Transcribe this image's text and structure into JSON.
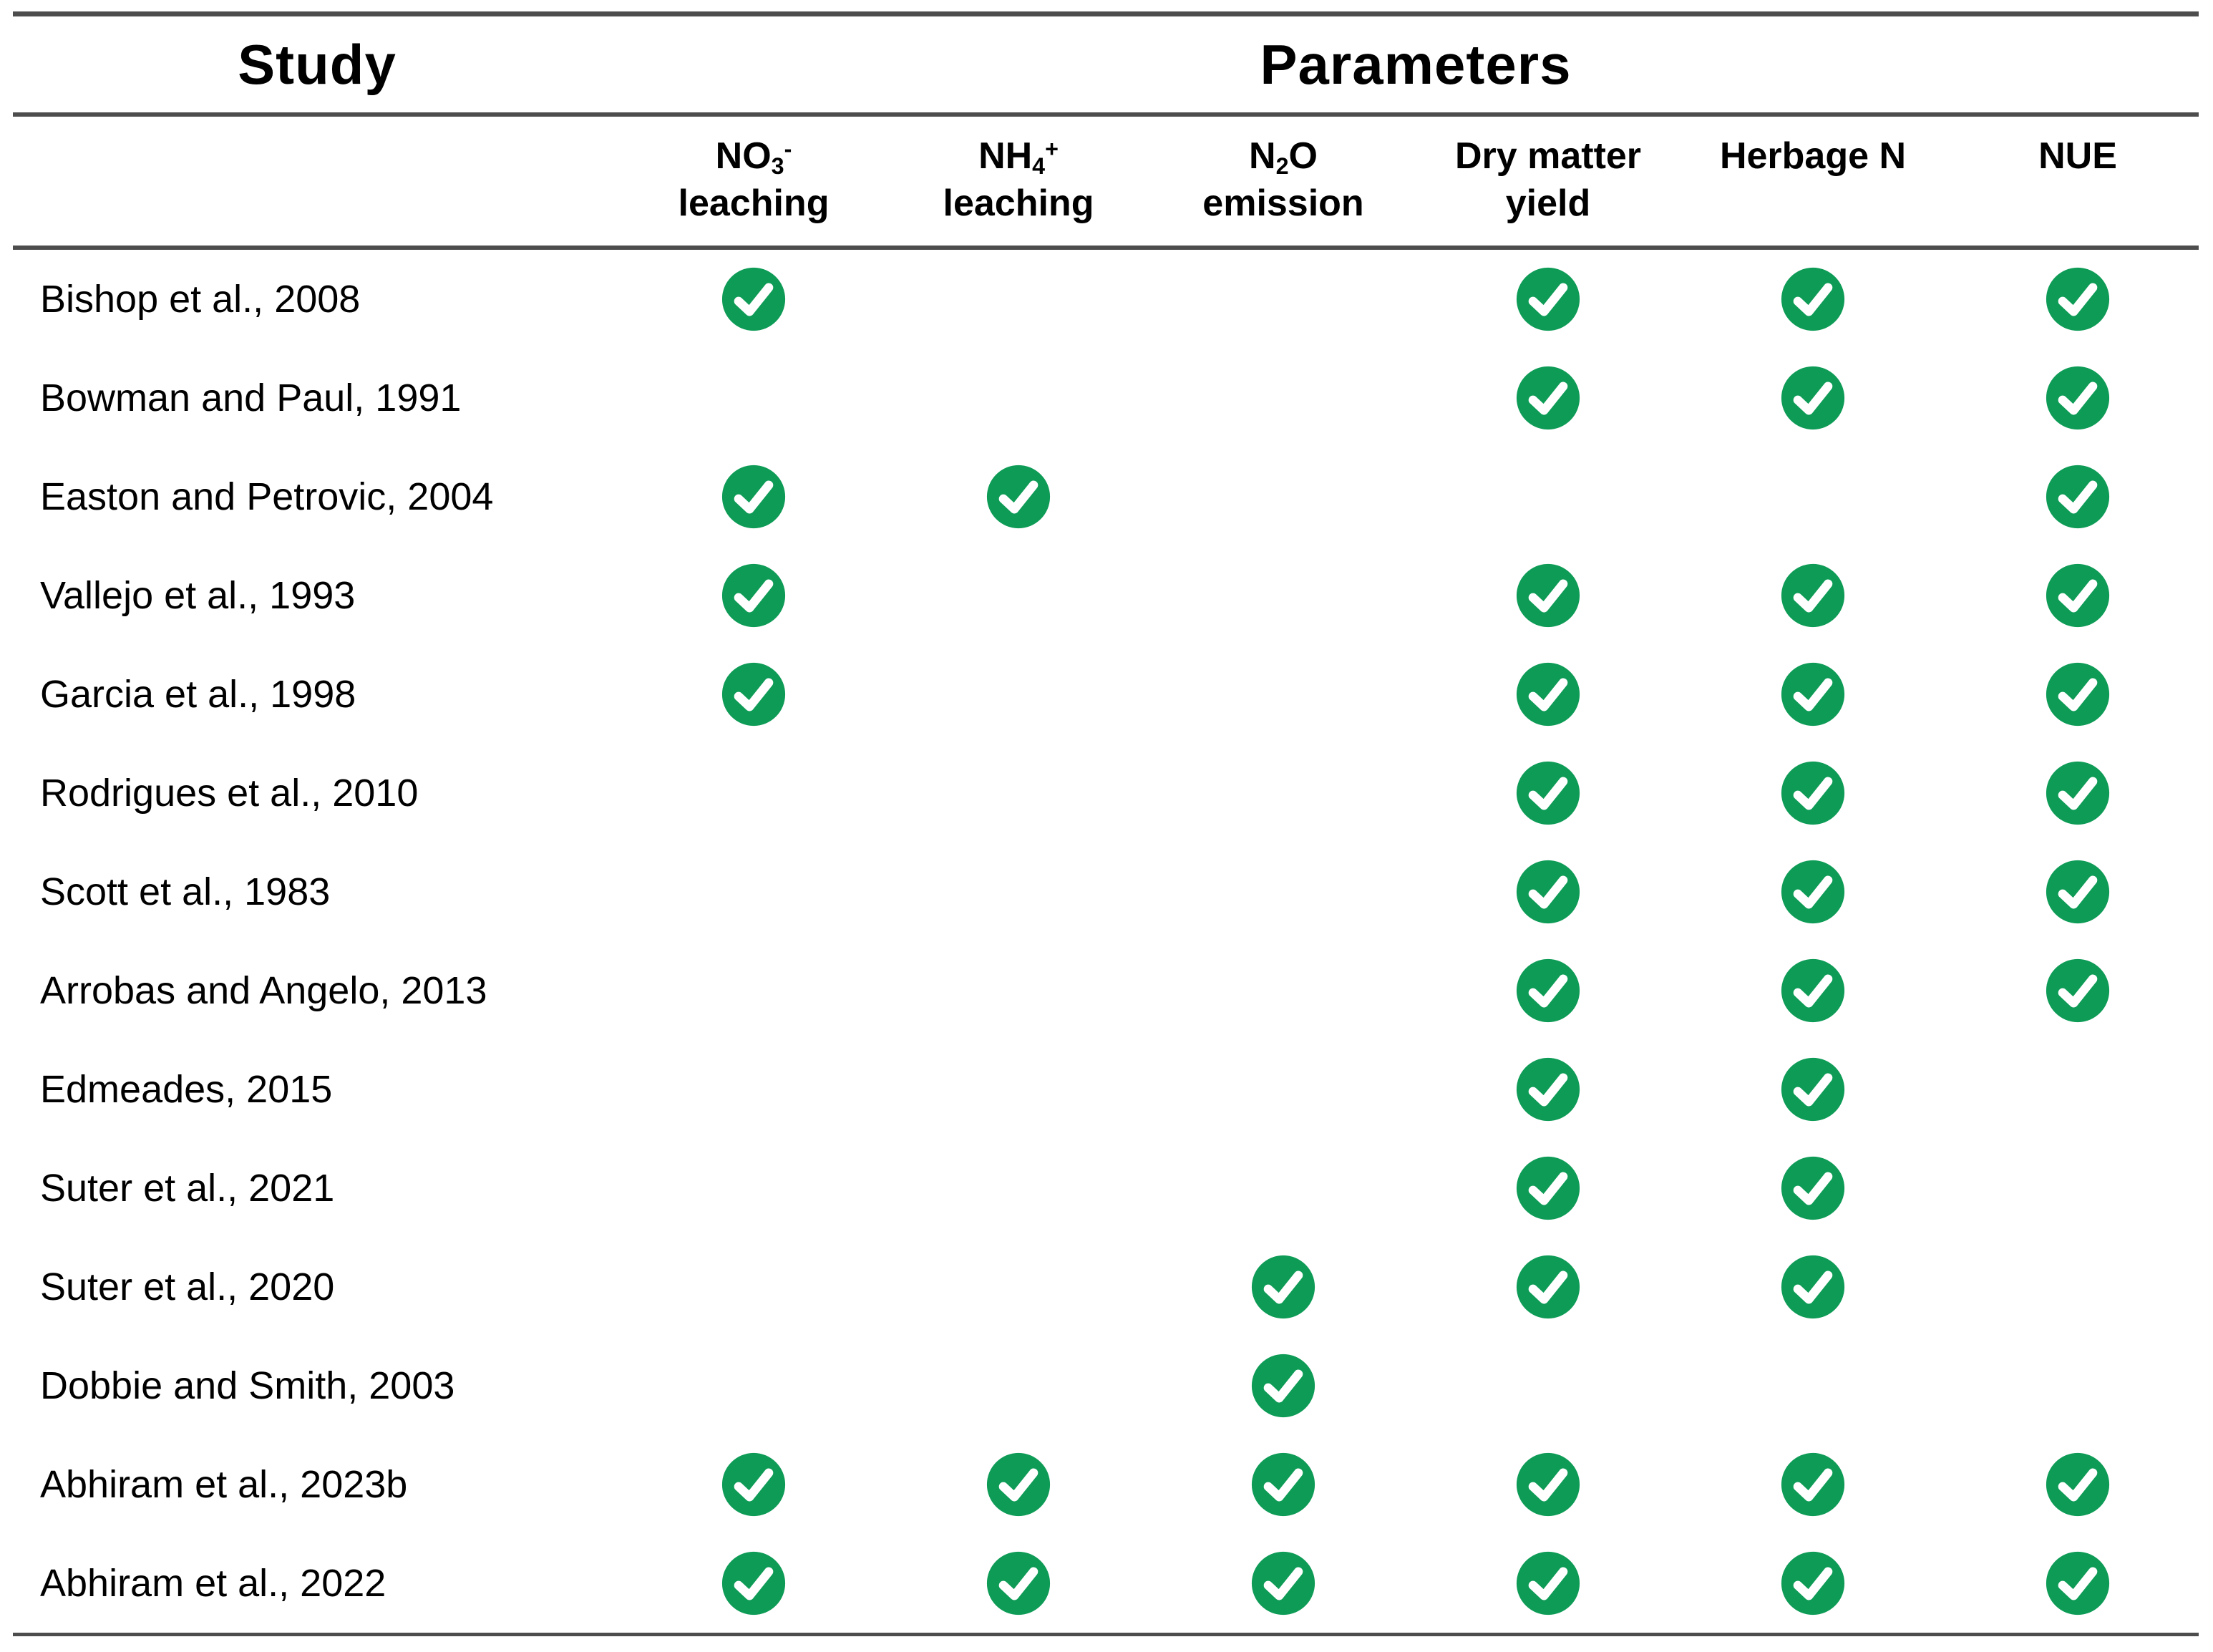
{
  "table": {
    "title_study": "Study",
    "title_parameters": "Parameters",
    "columns": [
      {
        "formula_pre": "NO",
        "formula_sub": "3",
        "formula_sup": "-",
        "formula_post": "",
        "line2": "leaching"
      },
      {
        "formula_pre": "NH",
        "formula_sub": "4",
        "formula_sup": "+",
        "formula_post": "",
        "line2": "leaching"
      },
      {
        "formula_pre": "N",
        "formula_sub": "2",
        "formula_sup": "",
        "formula_post": "O",
        "line2": "emission"
      },
      {
        "formula_pre": "Dry matter",
        "formula_sub": "",
        "formula_sup": "",
        "formula_post": "",
        "line2": "yield"
      },
      {
        "formula_pre": "Herbage N",
        "formula_sub": "",
        "formula_sup": "",
        "formula_post": "",
        "line2": ""
      },
      {
        "formula_pre": "NUE",
        "formula_sub": "",
        "formula_sup": "",
        "formula_post": "",
        "line2": ""
      }
    ],
    "rows": [
      {
        "study": "Bishop et al., 2008",
        "checks": [
          true,
          false,
          false,
          true,
          true,
          true
        ]
      },
      {
        "study": "Bowman and Paul, 1991",
        "checks": [
          false,
          false,
          false,
          true,
          true,
          true
        ]
      },
      {
        "study": "Easton and Petrovic, 2004",
        "checks": [
          true,
          true,
          false,
          false,
          false,
          true
        ]
      },
      {
        "study": "Vallejo et al., 1993",
        "checks": [
          true,
          false,
          false,
          true,
          true,
          true
        ]
      },
      {
        "study": "Garcia et al., 1998",
        "checks": [
          true,
          false,
          false,
          true,
          true,
          true
        ]
      },
      {
        "study": "Rodrigues et al., 2010",
        "checks": [
          false,
          false,
          false,
          true,
          true,
          true
        ]
      },
      {
        "study": "Scott et al., 1983",
        "checks": [
          false,
          false,
          false,
          true,
          true,
          true
        ]
      },
      {
        "study": "Arrobas and Angelo, 2013",
        "checks": [
          false,
          false,
          false,
          true,
          true,
          true
        ]
      },
      {
        "study": "Edmeades, 2015",
        "checks": [
          false,
          false,
          false,
          true,
          true,
          false
        ]
      },
      {
        "study": "Suter et al., 2021",
        "checks": [
          false,
          false,
          false,
          true,
          true,
          false
        ]
      },
      {
        "study": "Suter et al., 2020",
        "checks": [
          false,
          false,
          true,
          true,
          true,
          false
        ]
      },
      {
        "study": "Dobbie and Smith, 2003",
        "checks": [
          false,
          false,
          true,
          false,
          false,
          false
        ]
      },
      {
        "study": "Abhiram et al., 2023b",
        "checks": [
          true,
          true,
          true,
          true,
          true,
          true
        ]
      },
      {
        "study": "Abhiram et al., 2022",
        "checks": [
          true,
          true,
          true,
          true,
          true,
          true
        ]
      }
    ],
    "check_icon": {
      "name": "check-icon",
      "circle_color": "#0d9b56",
      "tick_color": "#ffffff"
    },
    "colors": {
      "rule": "#4d4d4d",
      "text": "#000000",
      "background": "#ffffff"
    }
  }
}
